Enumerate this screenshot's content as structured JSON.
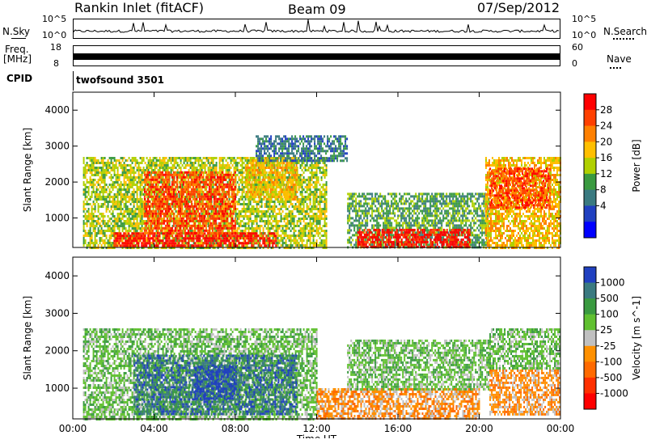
{
  "header": {
    "station": "Rankin Inlet (fitACF)",
    "beam": "Beam 09",
    "date": "07/Sep/2012"
  },
  "status_panels": {
    "nsky": {
      "label": "N.Sky",
      "top_tick": "10^5",
      "bottom_tick": "10^0"
    },
    "nsearch": {
      "label": "N.Search",
      "top_tick": "10^5",
      "bottom_tick": "10^0"
    },
    "freq": {
      "label_line1": "Freq.",
      "label_line2": "[MHz]",
      "top_tick": "18",
      "bottom_tick": "8"
    },
    "nave": {
      "label": "Nave",
      "top_tick": "60",
      "bottom_tick": "0"
    },
    "cpid": {
      "label": "CPID",
      "program": "twofsound 3501"
    }
  },
  "chart_data": [
    {
      "type": "heatmap",
      "title": "",
      "xlabel": "Time UT",
      "ylabel": "Slant Range [km]",
      "xlim": [
        "00:00",
        "00:00"
      ],
      "xticks": [
        "00:00",
        "04:00",
        "08:00",
        "12:00",
        "16:00",
        "20:00",
        "00:00"
      ],
      "ylim": [
        180,
        4500
      ],
      "yticks": [
        1000,
        2000,
        3000,
        4000
      ],
      "colorbar": {
        "label": "Power [dB]",
        "ticks": [
          "28",
          "24",
          "20",
          "16",
          "12",
          "8",
          "4"
        ],
        "colors": [
          "#ff0000",
          "#ff4000",
          "#ff8000",
          "#ffbf00",
          "#b0d000",
          "#3a9a40",
          "#3a7a80",
          "#2040c0",
          "#0000ff"
        ]
      },
      "regions": [
        {
          "t0": 0.5,
          "t1": 12.5,
          "r0": 180,
          "r1": 2700,
          "value": "12"
        },
        {
          "t0": 2.0,
          "t1": 10.0,
          "r0": 250,
          "r1": 600,
          "value": "28"
        },
        {
          "t0": 3.5,
          "t1": 8.0,
          "r0": 600,
          "r1": 2300,
          "value": "24"
        },
        {
          "t0": 8.5,
          "t1": 11.0,
          "r0": 1500,
          "r1": 2700,
          "value": "16"
        },
        {
          "t0": 9.0,
          "t1": 13.5,
          "r0": 2600,
          "r1": 3300,
          "value": "4"
        },
        {
          "t0": 13.5,
          "t1": 20.5,
          "r0": 180,
          "r1": 1700,
          "value": "8"
        },
        {
          "t0": 14.0,
          "t1": 19.5,
          "r0": 200,
          "r1": 700,
          "value": "28"
        },
        {
          "t0": 20.3,
          "t1": 24.0,
          "r0": 180,
          "r1": 2700,
          "value": "16"
        },
        {
          "t0": 20.5,
          "t1": 23.5,
          "r0": 1300,
          "r1": 2400,
          "value": "24"
        }
      ]
    },
    {
      "type": "heatmap",
      "title": "",
      "xlabel": "Time UT",
      "ylabel": "Slant Range [km]",
      "xlim": [
        "00:00",
        "00:00"
      ],
      "xticks": [
        "00:00",
        "04:00",
        "08:00",
        "12:00",
        "16:00",
        "20:00",
        "00:00"
      ],
      "ylim": [
        180,
        4500
      ],
      "yticks": [
        1000,
        2000,
        3000,
        4000
      ],
      "colorbar": {
        "label": "Velocity [m s^-1]",
        "ticks": [
          "1000",
          "500",
          "100",
          "25",
          "-25",
          "-100",
          "-500",
          "-1000"
        ],
        "colors": [
          "#2040c0",
          "#3a7a80",
          "#3a9a40",
          "#60c030",
          "#c0c0c0",
          "#ff9000",
          "#ff6a00",
          "#ff3000",
          "#ff0000"
        ]
      },
      "regions": [
        {
          "t0": 0.5,
          "t1": 12.0,
          "r0": 180,
          "r1": 2600,
          "value": "25"
        },
        {
          "t0": 3.0,
          "t1": 11.0,
          "r0": 300,
          "r1": 1900,
          "value": "500"
        },
        {
          "t0": 6.0,
          "t1": 8.0,
          "r0": 700,
          "r1": 1600,
          "value": "1000"
        },
        {
          "t0": 12.0,
          "t1": 20.0,
          "r0": 180,
          "r1": 1000,
          "value": "-100"
        },
        {
          "t0": 13.5,
          "t1": 20.5,
          "r0": 1000,
          "r1": 2300,
          "value": "25"
        },
        {
          "t0": 20.5,
          "t1": 24.0,
          "r0": 300,
          "r1": 1500,
          "value": "-100"
        },
        {
          "t0": 20.5,
          "t1": 24.0,
          "r0": 1500,
          "r1": 2600,
          "value": "25"
        }
      ]
    }
  ]
}
